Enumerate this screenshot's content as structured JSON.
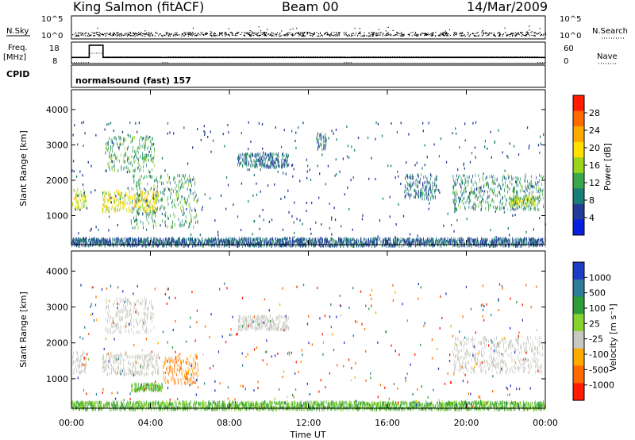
{
  "header": {
    "station": "King Salmon (fitACF)",
    "beam": "Beam 00",
    "date": "14/Mar/2009"
  },
  "top_strip": {
    "left_label_sky": "N.Sky",
    "left_label_freq": "Freq.",
    "left_label_freq_unit": "[MHz]",
    "left_label_cpid": "CPID",
    "right_label_search": "N.Search",
    "right_label_nave": "Nave",
    "noise_ticks_left": [
      "10^5",
      "10^0"
    ],
    "noise_ticks_right": [
      "10^5",
      "10^0"
    ],
    "freq_ticks": [
      "18",
      "8"
    ],
    "nave_ticks": [
      "60",
      "0"
    ],
    "cpid_text": "normalsound (fast) 157"
  },
  "panel_power": {
    "ylabel": "Slant Range [km]",
    "colorbar_label": "Power [dB]",
    "colorbar_ticks": [
      "28",
      "24",
      "20",
      "16",
      "12",
      "8",
      "4"
    ],
    "colorbar_colors": [
      "#ff1a00",
      "#ff6a00",
      "#ffaa00",
      "#ffe000",
      "#9ad41e",
      "#3aa84a",
      "#1a7e78",
      "#233c98",
      "#0a1ee0"
    ]
  },
  "panel_velocity": {
    "ylabel": "Slant Range [km]",
    "colorbar_label": "Velocity [m s⁻¹]",
    "colorbar_ticks": [
      "1000",
      "500",
      "100",
      "25",
      "-25",
      "-100",
      "-500",
      "-1000"
    ],
    "colorbar_colors": [
      "#1e3cc8",
      "#2e7c96",
      "#2e9c3a",
      "#86d22e",
      "#c8c8c0",
      "#ffaa00",
      "#ff6a00",
      "#ff1a00"
    ]
  },
  "xaxis": {
    "label": "Time UT",
    "ticks": [
      "00:00",
      "04:00",
      "08:00",
      "12:00",
      "16:00",
      "20:00",
      "00:00"
    ]
  },
  "chart_data": {
    "type": "heatmap",
    "title": "King Salmon (fitACF)",
    "subtitle": "Beam 00",
    "date": "14/Mar/2009",
    "xlabel": "Time UT",
    "ylabel": "Slant Range [km]",
    "xlim_hours": [
      0,
      24
    ],
    "ylim_km": [
      180,
      4560
    ],
    "ytick_values": [
      1000,
      2000,
      3000,
      4000
    ],
    "freq_mhz": {
      "segments": [
        {
          "start_h": 0.0,
          "end_h": 0.9,
          "value": 10
        },
        {
          "start_h": 0.9,
          "end_h": 1.6,
          "value": 18
        },
        {
          "start_h": 1.6,
          "end_h": 24.0,
          "value": 10
        }
      ]
    },
    "nave": {
      "segments": [
        {
          "start_h": 0.0,
          "end_h": 0.9,
          "value": 4
        },
        {
          "start_h": 0.9,
          "end_h": 1.6,
          "value": 30
        },
        {
          "start_h": 1.6,
          "end_h": 4.6,
          "value": 20
        },
        {
          "start_h": 4.6,
          "end_h": 4.9,
          "value": 4
        },
        {
          "start_h": 4.9,
          "end_h": 13.8,
          "value": 20
        },
        {
          "start_h": 13.8,
          "end_h": 14.2,
          "value": 4
        },
        {
          "start_h": 14.2,
          "end_h": 23.6,
          "value": 20
        },
        {
          "start_h": 23.6,
          "end_h": 24.0,
          "value": 4
        }
      ]
    },
    "power_regions": [
      {
        "t0": 0.05,
        "t1": 0.75,
        "r0": 1200,
        "r1": 1800,
        "db": 16
      },
      {
        "t0": 1.55,
        "t1": 4.4,
        "r0": 1150,
        "r1": 1750,
        "db": 18
      },
      {
        "t0": 1.7,
        "t1": 4.2,
        "r0": 2300,
        "r1": 3300,
        "db": 11
      },
      {
        "t0": 3.0,
        "t1": 6.4,
        "r0": 700,
        "r1": 2200,
        "db": 10
      },
      {
        "t0": 8.4,
        "t1": 11.0,
        "r0": 2400,
        "r1": 2800,
        "db": 6
      },
      {
        "t0": 12.4,
        "t1": 12.9,
        "r0": 2900,
        "r1": 3400,
        "db": 6
      },
      {
        "t0": 16.8,
        "t1": 18.5,
        "r0": 1500,
        "r1": 2200,
        "db": 6
      },
      {
        "t0": 19.3,
        "t1": 23.9,
        "r0": 1200,
        "r1": 2200,
        "db": 9
      },
      {
        "t0": 22.2,
        "t1": 23.5,
        "r0": 1300,
        "r1": 1600,
        "db": 15
      },
      {
        "t0": 0.0,
        "t1": 24.0,
        "r0": 180,
        "r1": 400,
        "db": 5
      }
    ],
    "velocity_regions": [
      {
        "t0": 0.05,
        "t1": 0.75,
        "r0": 1200,
        "r1": 1800,
        "v": 0
      },
      {
        "t0": 1.55,
        "t1": 4.4,
        "r0": 1150,
        "r1": 1750,
        "v": 0
      },
      {
        "t0": 1.7,
        "t1": 4.2,
        "r0": 2300,
        "r1": 3300,
        "v": 0
      },
      {
        "t0": 4.6,
        "t1": 6.4,
        "r0": 900,
        "r1": 1700,
        "v": -200
      },
      {
        "t0": 3.0,
        "t1": 4.6,
        "r0": 700,
        "r1": 900,
        "v": 60
      },
      {
        "t0": 8.4,
        "t1": 11.0,
        "r0": 2400,
        "r1": 2800,
        "v": 0
      },
      {
        "t0": 19.3,
        "t1": 23.9,
        "r0": 1200,
        "r1": 2200,
        "v": 0
      },
      {
        "t0": 0.0,
        "t1": 24.0,
        "r0": 180,
        "r1": 400,
        "v": 60
      }
    ]
  }
}
